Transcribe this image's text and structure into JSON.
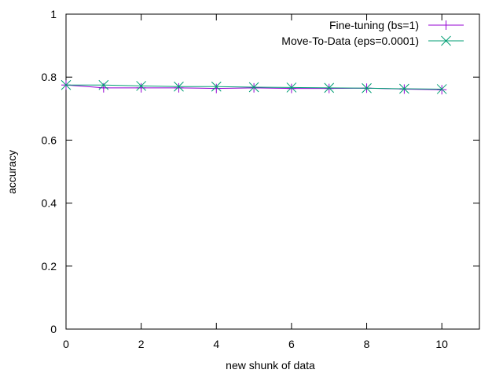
{
  "chart_data": {
    "type": "line",
    "xlabel": "new shunk of data",
    "ylabel": "accuracy",
    "xlim": [
      0,
      11
    ],
    "ylim": [
      0,
      1
    ],
    "xticks": [
      0,
      2,
      4,
      6,
      8,
      10
    ],
    "yticks": [
      0,
      0.2,
      0.4,
      0.6,
      0.8,
      1
    ],
    "ytick_labels": [
      "0",
      "0.2",
      "0.4",
      "0.6",
      "0.8",
      "1"
    ],
    "grid": false,
    "legend_position": "top-right",
    "series": [
      {
        "name": "Fine-tuning (bs=1)",
        "color": "#9400d3",
        "marker": "plus",
        "x": [
          0,
          1,
          2,
          3,
          4,
          5,
          6,
          7,
          8,
          9,
          10
        ],
        "y": [
          0.775,
          0.766,
          0.766,
          0.766,
          0.764,
          0.766,
          0.764,
          0.764,
          0.765,
          0.762,
          0.76
        ]
      },
      {
        "name": "Move-To-Data (eps=0.0001)",
        "color": "#009e73",
        "marker": "cross",
        "x": [
          0,
          1,
          2,
          3,
          4,
          5,
          6,
          7,
          8,
          9,
          10
        ],
        "y": [
          0.775,
          0.775,
          0.772,
          0.77,
          0.77,
          0.768,
          0.767,
          0.766,
          0.765,
          0.763,
          0.762
        ]
      }
    ]
  }
}
